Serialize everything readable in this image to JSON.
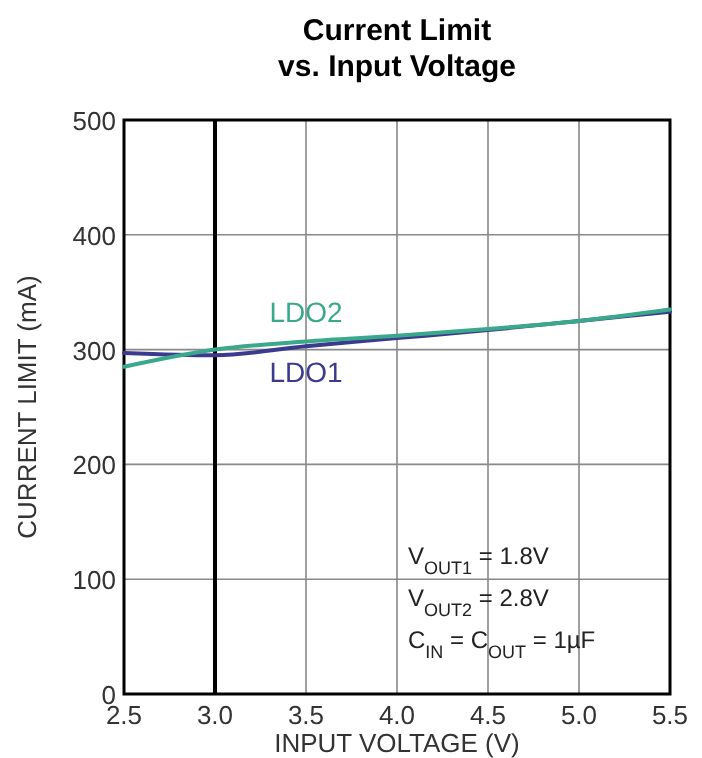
{
  "chart_data": {
    "type": "line",
    "title": "Current Limit",
    "subtitle": "vs. Input Voltage",
    "xlabel": "INPUT VOLTAGE (V)",
    "ylabel": "CURRENT LIMIT (mA)",
    "x": [
      2.5,
      3.0,
      3.5,
      4.0,
      4.5,
      5.0,
      5.5
    ],
    "series": [
      {
        "name": "LDO1",
        "color": "#3c3a8e",
        "values": [
          297,
          295,
          303,
          310,
          317,
          325,
          333
        ]
      },
      {
        "name": "LDO2",
        "color": "#3aa88a",
        "values": [
          285,
          300,
          307,
          312,
          318,
          325,
          335
        ]
      }
    ],
    "xlim": [
      2.5,
      5.5
    ],
    "xticks": [
      2.5,
      {
        "value": 3,
        "label": "3.0"
      },
      3.5,
      {
        "value": 4,
        "label": "4.0"
      },
      4.5,
      {
        "value": 5,
        "label": "5.0"
      },
      5.5
    ],
    "ylim": [
      0,
      500
    ],
    "yticks": [
      0,
      100,
      200,
      300,
      400,
      500
    ],
    "grid": true,
    "marker": "none",
    "line_style": "solid",
    "ref_lines": [
      {
        "axis": "x",
        "value": 3.0,
        "color": "#000000"
      }
    ],
    "annotations": [
      "V$_{OUT1}$ = 1.8V",
      "V$_{OUT2}$ = 2.8V",
      "C$_{IN}$ = C$_{OUT}$ = 1µF"
    ]
  }
}
